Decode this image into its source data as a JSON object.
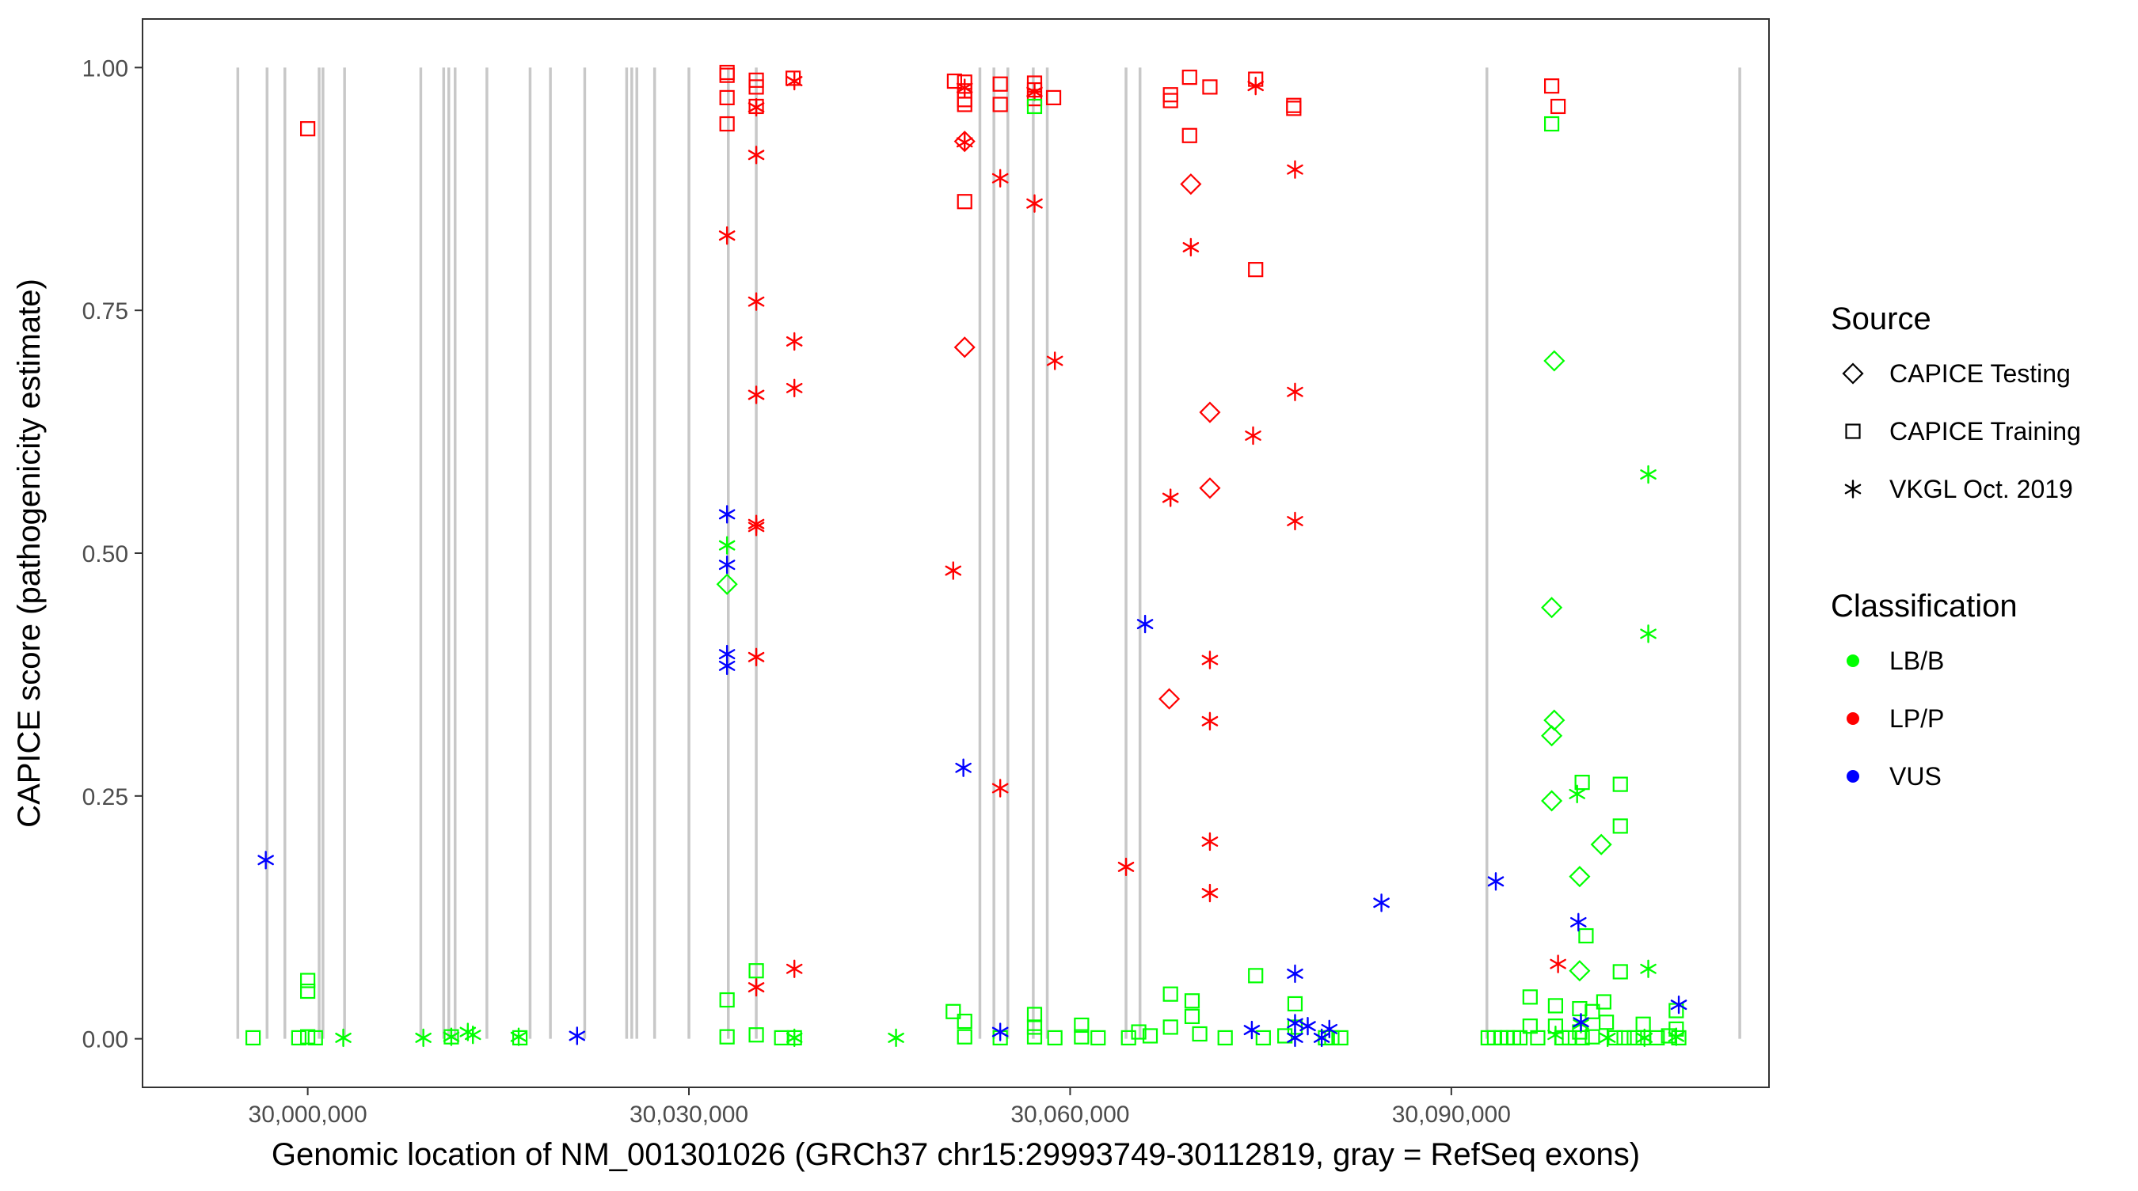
{
  "chart_data": {
    "type": "scatter",
    "title": "",
    "xlabel": "Genomic location of NM_001301026 (GRCh37 chr15:29993749-30112819, gray = RefSeq exons)",
    "ylabel": "CAPICE score (pathogenicity estimate)",
    "xlim": [
      29987000,
      30115000
    ],
    "ylim": [
      -0.05,
      1.05
    ],
    "x_ticks": [
      30000000,
      30030000,
      30060000,
      30090000
    ],
    "x_tick_labels": [
      "30,000,000",
      "30,030,000",
      "30,060,000",
      "30,090,000"
    ],
    "y_ticks": [
      0,
      0.25,
      0.5,
      0.75,
      1.0
    ],
    "y_tick_labels": [
      "0.00",
      "0.25",
      "0.50",
      "0.75",
      "1.00"
    ],
    "exons": [
      29994500,
      29996800,
      29998200,
      30000900,
      30001200,
      30002900,
      30008900,
      30010700,
      30011100,
      30011600,
      30014100,
      30017500,
      30019100,
      30021800,
      30025100,
      30025500,
      30025900,
      30027300,
      30030000,
      30033100,
      30035300,
      30052900,
      30054000,
      30055100,
      30057100,
      30058200,
      30064400,
      30065500,
      30092800,
      30112700
    ],
    "colors": {
      "LB/B": "#00FF00",
      "LP/P": "#FF0000",
      "VUS": "#0000FF",
      "exon": "#C8C8C8"
    },
    "legend": {
      "placement": "right",
      "source_title": "Source",
      "source_items": [
        {
          "label": "CAPICE Testing",
          "shape": "diamond"
        },
        {
          "label": "CAPICE Training",
          "shape": "square"
        },
        {
          "label": "VKGL Oct. 2019",
          "shape": "asterisk"
        }
      ],
      "class_title": "Classification",
      "class_items": [
        {
          "label": "LB/B",
          "key": "LB/B"
        },
        {
          "label": "LP/P",
          "key": "LP/P"
        },
        {
          "label": "VUS",
          "key": "VUS"
        }
      ]
    },
    "series": [
      {
        "name": "LP/P - CAPICE Training",
        "class": "LP/P",
        "shape": "square",
        "points": [
          [
            30000000,
            0.937
          ],
          [
            30033000,
            0.995
          ],
          [
            30033000,
            0.992
          ],
          [
            30033000,
            0.969
          ],
          [
            30033000,
            0.942
          ],
          [
            30035300,
            0.987
          ],
          [
            30035300,
            0.98
          ],
          [
            30035300,
            0.96
          ],
          [
            30038200,
            0.989
          ],
          [
            30050900,
            0.986
          ],
          [
            30051700,
            0.985
          ],
          [
            30051700,
            0.976
          ],
          [
            30051700,
            0.967
          ],
          [
            30051700,
            0.962
          ],
          [
            30051700,
            0.862
          ],
          [
            30054500,
            0.983
          ],
          [
            30054500,
            0.962
          ],
          [
            30057200,
            0.984
          ],
          [
            30057200,
            0.977
          ],
          [
            30057200,
            0.968
          ],
          [
            30058700,
            0.969
          ],
          [
            30067900,
            0.972
          ],
          [
            30067900,
            0.966
          ],
          [
            30069400,
            0.99
          ],
          [
            30069400,
            0.93
          ],
          [
            30071000,
            0.98
          ],
          [
            30074600,
            0.988
          ],
          [
            30074600,
            0.792
          ],
          [
            30077600,
            0.961
          ],
          [
            30077600,
            0.958
          ],
          [
            30097900,
            0.981
          ],
          [
            30098400,
            0.96
          ]
        ]
      },
      {
        "name": "LP/P - CAPICE Testing",
        "class": "LP/P",
        "shape": "diamond",
        "points": [
          [
            30051700,
            0.924
          ],
          [
            30051700,
            0.712
          ],
          [
            30069500,
            0.88
          ],
          [
            30071000,
            0.645
          ],
          [
            30071000,
            0.567
          ],
          [
            30067800,
            0.35
          ]
        ]
      },
      {
        "name": "LP/P - VKGL Oct. 2019",
        "class": "LP/P",
        "shape": "asterisk",
        "points": [
          [
            30035300,
            0.959
          ],
          [
            30035300,
            0.91
          ],
          [
            30035300,
            0.759
          ],
          [
            30035300,
            0.663
          ],
          [
            30035300,
            0.53
          ],
          [
            30035300,
            0.527
          ],
          [
            30035300,
            0.393
          ],
          [
            30035300,
            0.053
          ],
          [
            30033000,
            0.827
          ],
          [
            30038300,
            0.986
          ],
          [
            30038300,
            0.718
          ],
          [
            30038300,
            0.67
          ],
          [
            30038300,
            0.072
          ],
          [
            30051700,
            0.979
          ],
          [
            30051700,
            0.923
          ],
          [
            30054500,
            0.886
          ],
          [
            30054500,
            0.258
          ],
          [
            30057200,
            0.975
          ],
          [
            30057200,
            0.86
          ],
          [
            30058800,
            0.698
          ],
          [
            30050800,
            0.482
          ],
          [
            30064400,
            0.177
          ],
          [
            30067900,
            0.557
          ],
          [
            30069500,
            0.815
          ],
          [
            30071000,
            0.39
          ],
          [
            30071000,
            0.327
          ],
          [
            30071000,
            0.203
          ],
          [
            30071000,
            0.15
          ],
          [
            30074400,
            0.621
          ],
          [
            30074600,
            0.981
          ],
          [
            30077700,
            0.895
          ],
          [
            30077700,
            0.666
          ],
          [
            30077700,
            0.533
          ],
          [
            30098400,
            0.077
          ]
        ]
      },
      {
        "name": "LB/B - CAPICE Training",
        "class": "LB/B",
        "shape": "square",
        "points": [
          [
            29995700,
            0.001
          ],
          [
            29999300,
            0.001
          ],
          [
            30000000,
            0.06
          ],
          [
            30000000,
            0.049
          ],
          [
            30000000,
            0.002
          ],
          [
            30000600,
            0.001
          ],
          [
            30011300,
            0.002
          ],
          [
            30016700,
            0.001
          ],
          [
            30033000,
            0.04
          ],
          [
            30033000,
            0.002
          ],
          [
            30035300,
            0.07
          ],
          [
            30035300,
            0.004
          ],
          [
            30037300,
            0.001
          ],
          [
            30038300,
            0.001
          ],
          [
            30050800,
            0.028
          ],
          [
            30051700,
            0.018
          ],
          [
            30051700,
            0.002
          ],
          [
            30054500,
            0.001
          ],
          [
            30057200,
            0.96
          ],
          [
            30057200,
            0.025
          ],
          [
            30057200,
            0.012
          ],
          [
            30057200,
            0.002
          ],
          [
            30058800,
            0.001
          ],
          [
            30060900,
            0.014
          ],
          [
            30060900,
            0.002
          ],
          [
            30062200,
            0.001
          ],
          [
            30064600,
            0.001
          ],
          [
            30065400,
            0.007
          ],
          [
            30066300,
            0.003
          ],
          [
            30067900,
            0.046
          ],
          [
            30067900,
            0.012
          ],
          [
            30069600,
            0.039
          ],
          [
            30069600,
            0.023
          ],
          [
            30070200,
            0.005
          ],
          [
            30072200,
            0.001
          ],
          [
            30074600,
            0.065
          ],
          [
            30075200,
            0.001
          ],
          [
            30076900,
            0.003
          ],
          [
            30077700,
            0.036
          ],
          [
            30077700,
            0.012
          ],
          [
            30080100,
            0.001
          ],
          [
            30080600,
            0.001
          ],
          [
            30081300,
            0.001
          ],
          [
            30092900,
            0.001
          ],
          [
            30093400,
            0.001
          ],
          [
            30093900,
            0.001
          ],
          [
            30094400,
            0.001
          ],
          [
            30094900,
            0.001
          ],
          [
            30095400,
            0.001
          ],
          [
            30096200,
            0.043
          ],
          [
            30096200,
            0.013
          ],
          [
            30096800,
            0.001
          ],
          [
            30097900,
            0.942
          ],
          [
            30098200,
            0.034
          ],
          [
            30098200,
            0.013
          ],
          [
            30098700,
            0.001
          ],
          [
            30099300,
            0.001
          ],
          [
            30100100,
            0.031
          ],
          [
            30100100,
            0.007
          ],
          [
            30100300,
            0.001
          ],
          [
            30100300,
            0.264
          ],
          [
            30100600,
            0.106
          ],
          [
            30101100,
            0.028
          ],
          [
            30101100,
            0.002
          ],
          [
            30102000,
            0.038
          ],
          [
            30102200,
            0.017
          ],
          [
            30102900,
            0.001
          ],
          [
            30103300,
            0.069
          ],
          [
            30103300,
            0.262
          ],
          [
            30103300,
            0.219
          ],
          [
            30103600,
            0.001
          ],
          [
            30104400,
            0.001
          ],
          [
            30105100,
            0.015
          ],
          [
            30105100,
            0.001
          ],
          [
            30106200,
            0.001
          ],
          [
            30107100,
            0.003
          ],
          [
            30107700,
            0.029
          ],
          [
            30107700,
            0.01
          ],
          [
            30107900,
            0.001
          ]
        ]
      },
      {
        "name": "LB/B - CAPICE Testing",
        "class": "LB/B",
        "shape": "diamond",
        "points": [
          [
            30033000,
            0.468
          ],
          [
            30098100,
            0.698
          ],
          [
            30097900,
            0.444
          ],
          [
            30098100,
            0.328
          ],
          [
            30097900,
            0.312
          ],
          [
            30097900,
            0.245
          ],
          [
            30101800,
            0.2
          ],
          [
            30100100,
            0.167
          ],
          [
            30100100,
            0.07
          ]
        ]
      },
      {
        "name": "LB/B - VKGL Oct. 2019",
        "class": "LB/B",
        "shape": "asterisk",
        "points": [
          [
            30033000,
            0.508
          ],
          [
            30002800,
            0.001
          ],
          [
            30009100,
            0.001
          ],
          [
            30011300,
            0.002
          ],
          [
            30012600,
            0.007
          ],
          [
            30013000,
            0.004
          ],
          [
            30016600,
            0.002
          ],
          [
            30038300,
            0.001
          ],
          [
            30046300,
            0.001
          ],
          [
            30105500,
            0.581
          ],
          [
            30105500,
            0.417
          ],
          [
            30099900,
            0.252
          ],
          [
            30105500,
            0.072
          ],
          [
            30098200,
            0.004
          ],
          [
            30100200,
            0.015
          ],
          [
            30102300,
            0.001
          ],
          [
            30105200,
            0.001
          ],
          [
            30107700,
            0.002
          ]
        ]
      },
      {
        "name": "VUS - VKGL Oct. 2019",
        "class": "VUS",
        "shape": "asterisk",
        "points": [
          [
            29996700,
            0.184
          ],
          [
            30021200,
            0.003
          ],
          [
            30033000,
            0.54
          ],
          [
            30033000,
            0.488
          ],
          [
            30033000,
            0.396
          ],
          [
            30033000,
            0.384
          ],
          [
            30051600,
            0.279
          ],
          [
            30054500,
            0.007
          ],
          [
            30065900,
            0.427
          ],
          [
            30074300,
            0.009
          ],
          [
            30077700,
            0.067
          ],
          [
            30077700,
            0.016
          ],
          [
            30077700,
            0.001
          ],
          [
            30078700,
            0.013
          ],
          [
            30079800,
            0.001
          ],
          [
            30080400,
            0.01
          ],
          [
            30084500,
            0.14
          ],
          [
            30093500,
            0.162
          ],
          [
            30100000,
            0.12
          ],
          [
            30100200,
            0.017
          ],
          [
            30107900,
            0.035
          ]
        ]
      }
    ]
  }
}
